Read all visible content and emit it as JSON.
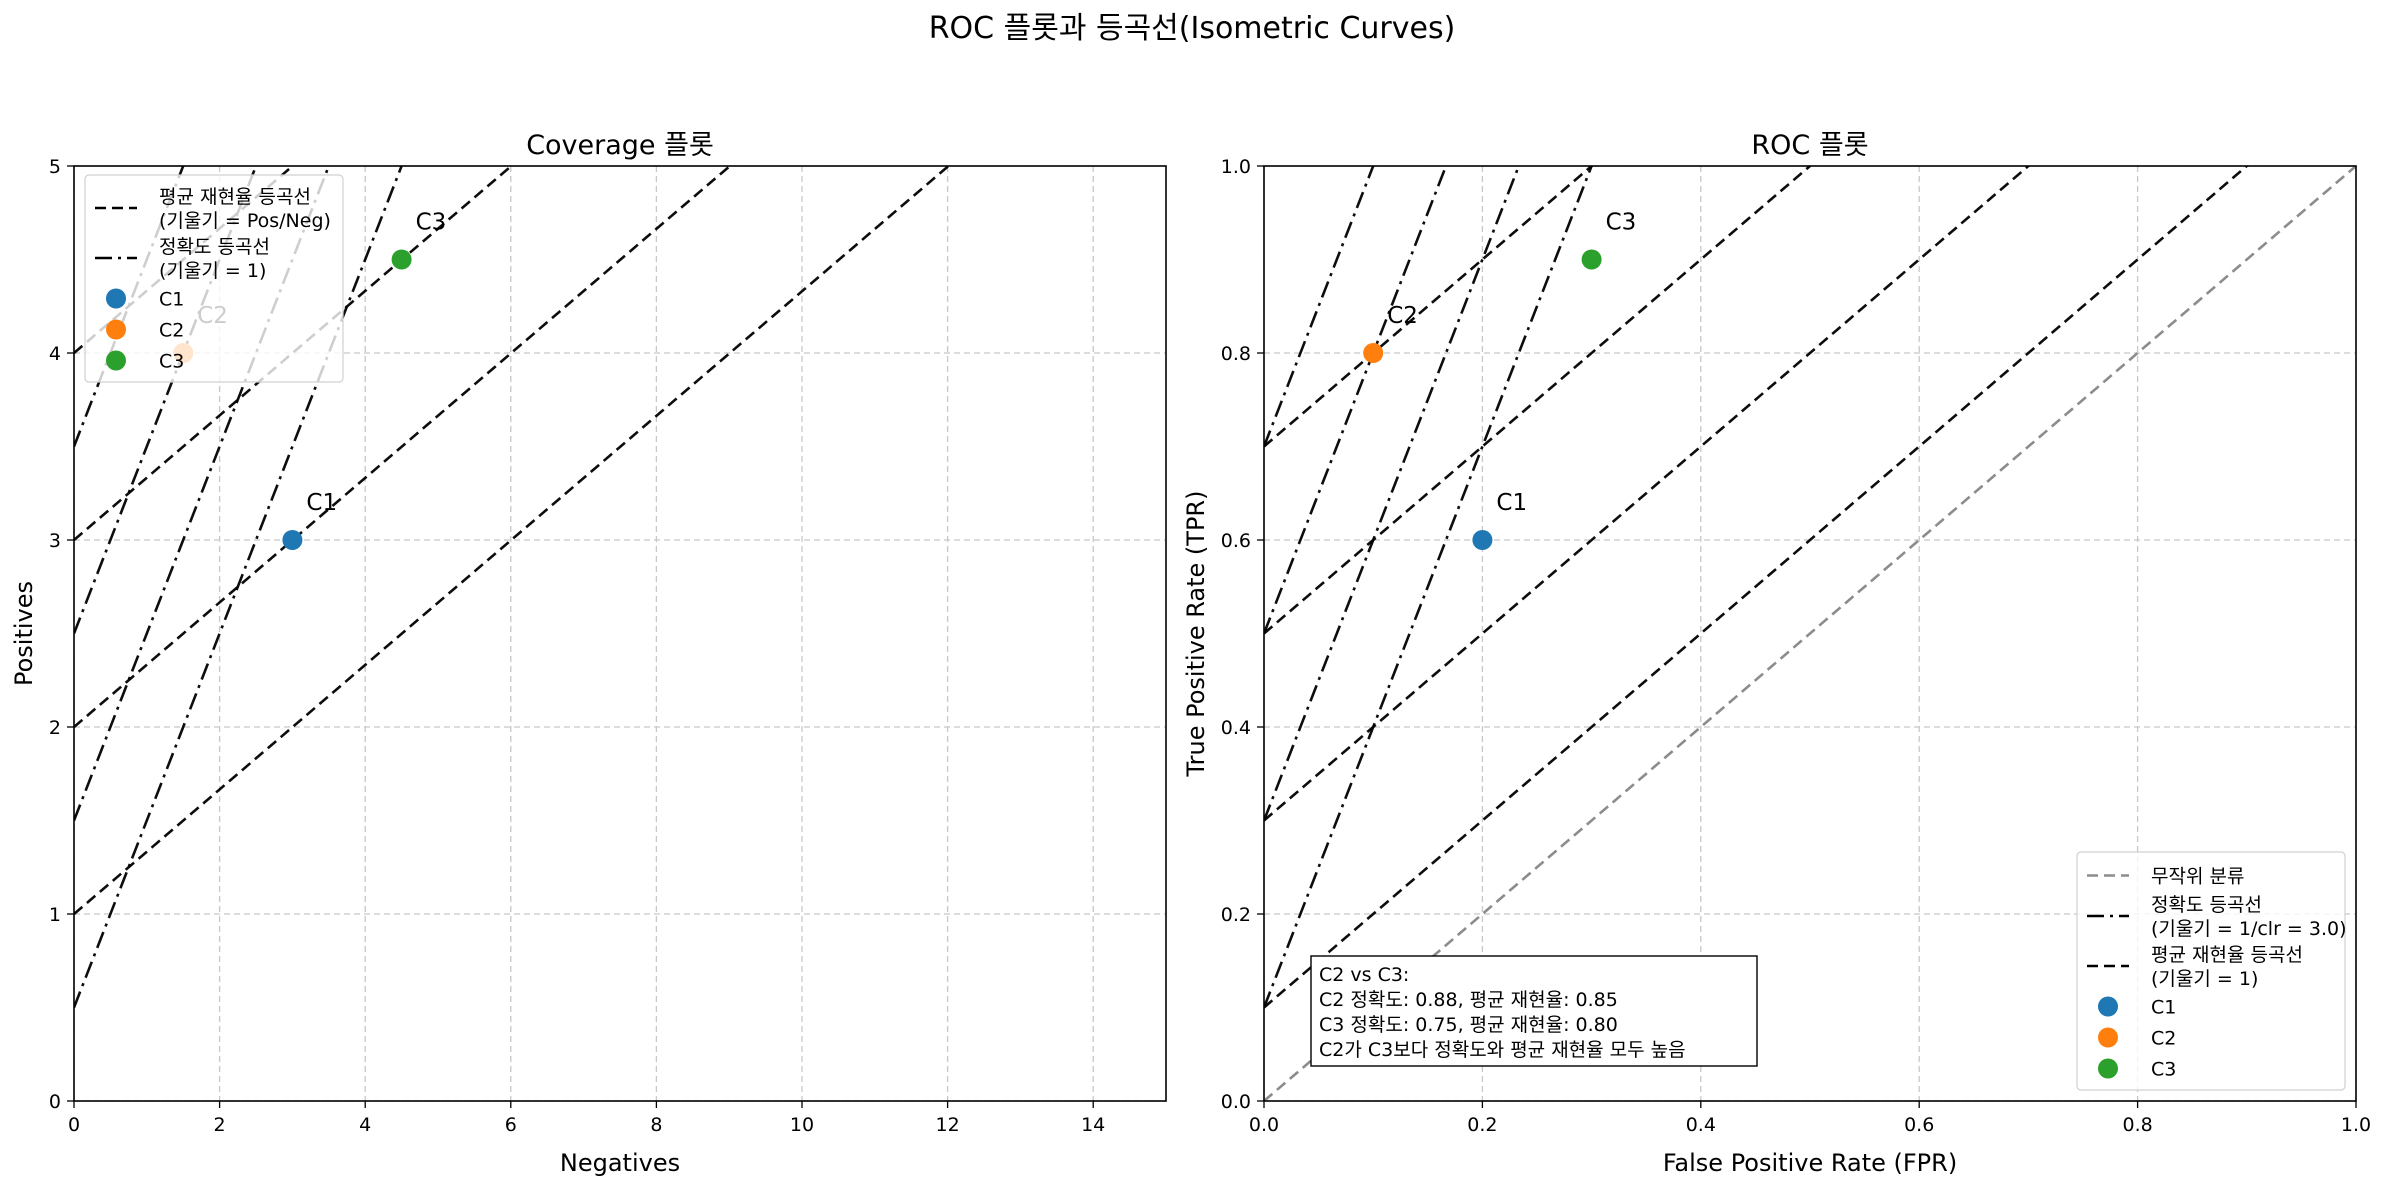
{
  "figure_title": "ROC 플롯과 등곡선(Isometric Curves)",
  "colors": {
    "C1": "#1f77b4",
    "C2": "#ff7f0e",
    "C3": "#2ca02c",
    "avg_recall_iso": "#3b3bea",
    "accuracy_iso": "#8b2f9e",
    "random": "#8c8c8c",
    "grid": "#c8c8c8"
  },
  "chart_data": [
    {
      "type": "scatter",
      "title": "Coverage 플롯",
      "xlabel": "Negatives",
      "ylabel": "Positives",
      "xlim": [
        0,
        15
      ],
      "ylim": [
        0,
        5
      ],
      "xticks": [
        "0",
        "2",
        "4",
        "6",
        "8",
        "10",
        "12",
        "14"
      ],
      "yticks": [
        "0",
        "1",
        "2",
        "3",
        "4",
        "5"
      ],
      "grid": true,
      "legend_position": "upper-left",
      "points": [
        {
          "label": "C1",
          "x": 3,
          "y": 3
        },
        {
          "label": "C2",
          "x": 1.5,
          "y": 4
        },
        {
          "label": "C3",
          "x": 4.5,
          "y": 4.5
        }
      ],
      "iso_lines": [
        {
          "kind": "avg_recall",
          "slope": 0.333,
          "intercepts": [
            1,
            2,
            3,
            4
          ]
        },
        {
          "kind": "accuracy",
          "slope": 1,
          "intercepts": [
            0.5,
            1.5,
            2.5,
            3.5
          ]
        }
      ],
      "legend": [
        {
          "kind": "avg_recall",
          "text": [
            "평균 재현율 등곡선",
            "(기울기 = Pos/Neg)"
          ]
        },
        {
          "kind": "accuracy",
          "text": [
            "정확도 등곡선",
            "(기울기 = 1)"
          ]
        },
        {
          "kind": "C1",
          "text": [
            "C1"
          ]
        },
        {
          "kind": "C2",
          "text": [
            "C2"
          ]
        },
        {
          "kind": "C3",
          "text": [
            "C3"
          ]
        }
      ]
    },
    {
      "type": "scatter",
      "title": "ROC 플롯",
      "xlabel": "False Positive Rate (FPR)",
      "ylabel": "True Positive Rate (TPR)",
      "xlim": [
        0,
        1
      ],
      "ylim": [
        0,
        1
      ],
      "xticks": [
        "0.0",
        "0.2",
        "0.4",
        "0.6",
        "0.8",
        "1.0"
      ],
      "yticks": [
        "0.0",
        "0.2",
        "0.4",
        "0.6",
        "0.8",
        "1.0"
      ],
      "grid": true,
      "legend_position": "lower-right",
      "points": [
        {
          "label": "C1",
          "x": 0.2,
          "y": 0.6
        },
        {
          "label": "C2",
          "x": 0.1,
          "y": 0.8
        },
        {
          "label": "C3",
          "x": 0.3,
          "y": 0.9
        }
      ],
      "iso_lines": [
        {
          "kind": "random",
          "slope": 1,
          "intercepts": [
            0
          ]
        },
        {
          "kind": "avg_recall",
          "slope": 1,
          "intercepts": [
            0.1,
            0.3,
            0.5,
            0.7
          ]
        },
        {
          "kind": "accuracy",
          "slope": 3,
          "intercepts": [
            0.1,
            0.3,
            0.5,
            0.7
          ]
        }
      ],
      "note": [
        "C2 vs C3:",
        "C2 정확도: 0.88, 평균 재현율: 0.85",
        "C3 정확도: 0.75, 평균 재현율: 0.80",
        "C2가 C3보다 정확도와 평균 재현율 모두 높음"
      ],
      "legend": [
        {
          "kind": "random",
          "text": [
            "무작위 분류"
          ]
        },
        {
          "kind": "accuracy",
          "text": [
            "정확도 등곡선",
            "(기울기 = 1/clr = 3.0)"
          ]
        },
        {
          "kind": "avg_recall",
          "text": [
            "평균 재현율 등곡선",
            "(기울기 = 1)"
          ]
        },
        {
          "kind": "C1",
          "text": [
            "C1"
          ]
        },
        {
          "kind": "C2",
          "text": [
            "C2"
          ]
        },
        {
          "kind": "C3",
          "text": [
            "C3"
          ]
        }
      ]
    }
  ]
}
